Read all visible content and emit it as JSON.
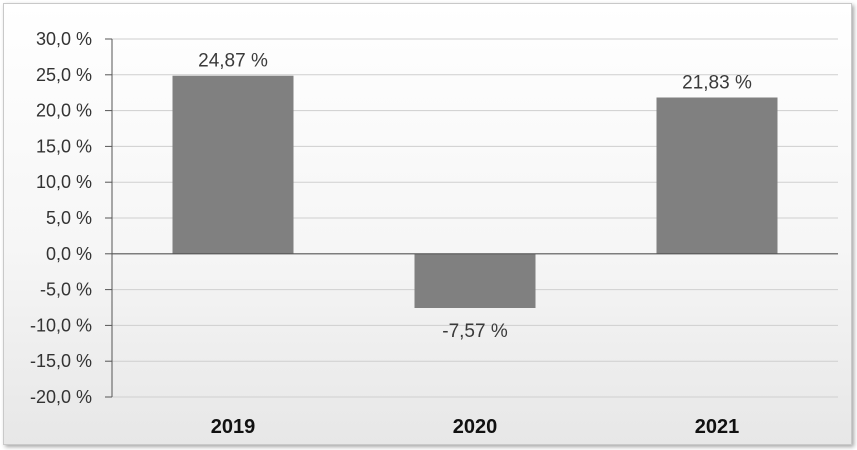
{
  "chart_data": {
    "type": "bar",
    "categories": [
      "2019",
      "2020",
      "2021"
    ],
    "values": [
      24.87,
      -7.57,
      21.83
    ],
    "data_labels": [
      "24,87 %",
      "-7,57 %",
      "21,83 %"
    ],
    "ylim": [
      -20,
      30
    ],
    "yticks": [
      30,
      25,
      20,
      15,
      10,
      5,
      0,
      -5,
      -10,
      -15,
      -20
    ],
    "ytick_labels": [
      "30,0 %",
      "25,0 %",
      "20,0 %",
      "15,0 %",
      "10,0 %",
      "5,0 %",
      "0,0 %",
      "-5,0 %",
      "-10,0 %",
      "-15,0 %",
      "-20,0 %"
    ],
    "title": "",
    "xlabel": "",
    "ylabel": "",
    "grid": true,
    "legend": "none",
    "bar_color": "#808080",
    "grid_color": "#cfcfcf",
    "axis_color": "#555555"
  }
}
